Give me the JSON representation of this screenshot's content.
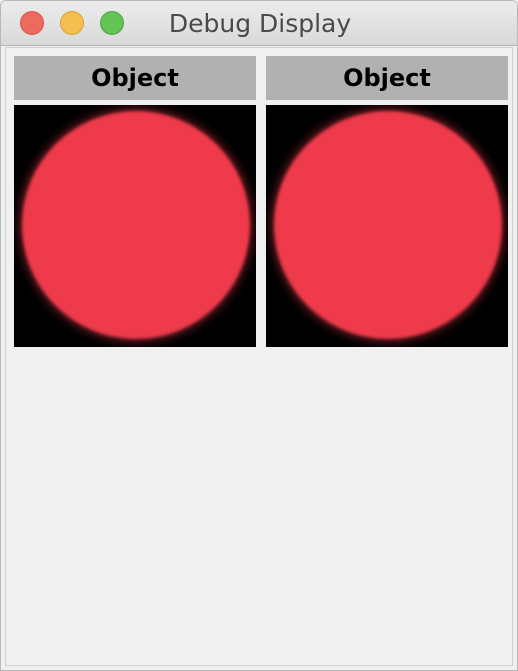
{
  "window": {
    "title": "Debug Display"
  },
  "panels": [
    {
      "label": "Object",
      "color": "#ef3a4b"
    },
    {
      "label": "Object",
      "color": "#ef3a4b"
    }
  ],
  "colors": {
    "object_fill": "#ef3a4b",
    "view_background": "#000000",
    "header_background": "#b1b1b1"
  },
  "icons": {
    "close": "close-icon",
    "minimize": "minimize-icon",
    "maximize": "maximize-icon"
  }
}
